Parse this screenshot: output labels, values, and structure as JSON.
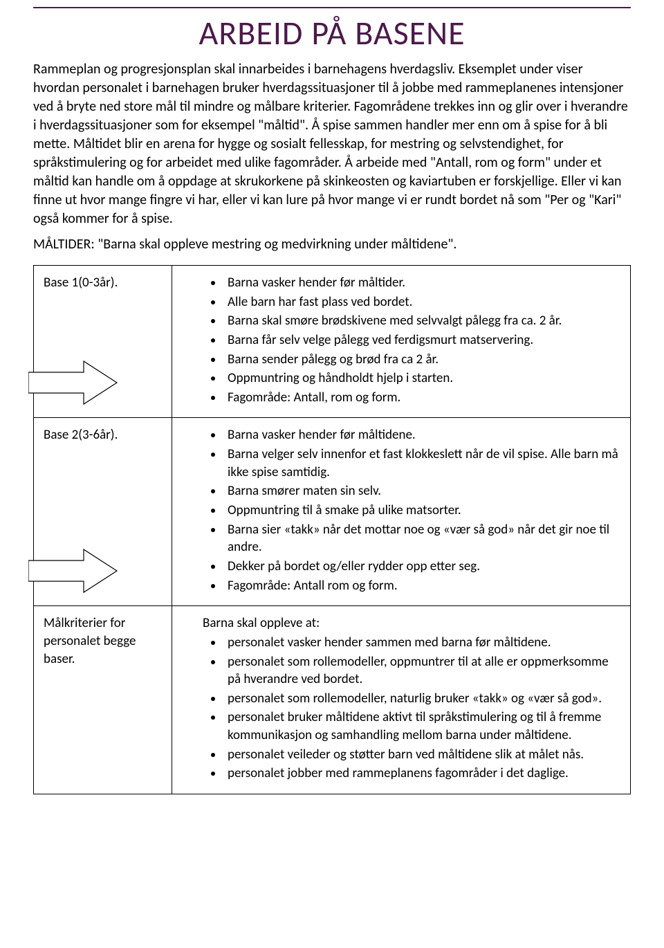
{
  "colors": {
    "accent": "#4b1a4a",
    "text": "#000000",
    "background": "#ffffff",
    "arrow_fill": "#ffffff",
    "arrow_stroke": "#000000"
  },
  "title": "ARBEID PÅ BASENE",
  "intro": "Rammeplan og progresjonsplan skal innarbeides i barnehagens hverdagsliv. Eksemplet under viser hvordan personalet i barnehagen bruker hverdagssituasjoner til å jobbe med ramme­planenes intensjoner ved å bryte ned store mål til mindre og målbare kriterier. Fagområdene trekkes inn og glir over i hverandre i hverdagssituasjoner som for eksempel \"måltid\". Å spise sammen handler mer enn om å spise for å bli mette. Måltidet blir en arena for hygge og sosialt fellesskap, for mestring og selvstendighet, for språkstimulering og for arbeidet med ulike fagområder. Å arbeide med \"Antall, rom og form\" under et måltid kan handle om å oppdage at skrukorkene på skinkeosten og kaviartuben er forskjellige. Eller vi kan finne ut hvor mange fingre vi har, eller vi kan lure på hvor mange vi er rundt bordet nå som \"Per og \"Kari\" også kommer for å spise.",
  "sub": "MÅLTIDER: \"Barna skal oppleve mestring og medvirkning under måltidene\".",
  "rows": [
    {
      "label": "Base 1(0-3år).",
      "has_arrow": true,
      "lead": null,
      "items": [
        "Barna vasker hender før måltider.",
        "Alle barn har fast plass ved bordet.",
        "Barna skal smøre brødskivene med selvvalgt pålegg fra ca. 2 år.",
        "Barna får selv velge pålegg ved ferdigsmurt matservering.",
        "Barna sender pålegg og brød fra ca 2 år.",
        "Oppmuntring og håndholdt hjelp i starten.",
        "Fagområde: Antall, rom og form."
      ]
    },
    {
      "label": "Base 2(3-6år).",
      "has_arrow": true,
      "lead": null,
      "items": [
        "Barna vasker hender før måltidene.",
        "Barna velger selv innenfor et fast klokkeslett når de vil spise. Alle barn må ikke spise samtidig.",
        "Barna smører maten sin selv.",
        "Oppmuntring til å smake på ulike matsorter.",
        "Barna sier «takk» når det mottar noe og «vær så god» når det gir noe til andre.",
        "Dekker på bordet og/eller rydder opp etter seg.",
        "Fagområde: Antall rom og form."
      ]
    },
    {
      "label": "Målkriterier for personalet begge baser.",
      "has_arrow": false,
      "lead": "Barna skal oppleve at:",
      "items": [
        "personalet vasker hender sammen med barna før måltidene.",
        "personalet som rollemodeller, oppmuntrer til at alle er opp­merksomme på hverandre ved bordet.",
        "personalet som rollemodeller, naturlig bruker «takk» og «vær så god».",
        "personalet bruker måltidene aktivt til språkstimulering og til å fremme kommunikasjon og samhandling mellom barna under måltidene.",
        "personalet veileder og støtter barn ved måltidene slik at målet nås.",
        "personalet jobber med rammeplanens fagområder i det daglige."
      ]
    }
  ]
}
